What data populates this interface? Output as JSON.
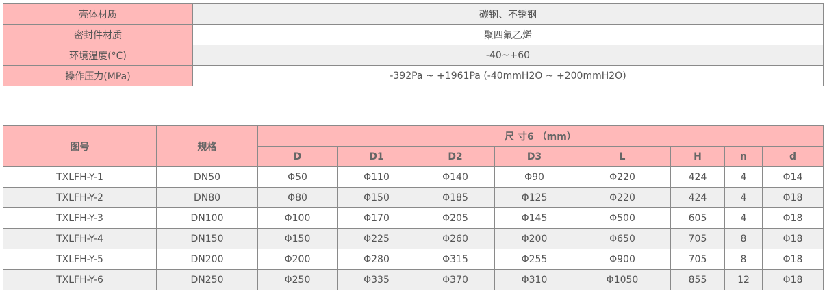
{
  "specs": [
    {
      "label": "壳体材质",
      "value": "碳钢、不锈钢"
    },
    {
      "label": "密封件材质",
      "value": "聚四氟乙烯"
    },
    {
      "label": "环境温度(°C)",
      "value": "-40~+60"
    },
    {
      "label": "操作压力(MPa)",
      "value": "-392Pa ~ +1961Pa  (-40mmH2O ~ +200mmH2O)"
    }
  ],
  "dims": {
    "col_drawing": "图号",
    "col_spec": "规格",
    "group": "尺  寸6 （mm）",
    "cols": [
      "D",
      "D1",
      "D2",
      "D3",
      "L",
      "H",
      "n",
      "d"
    ],
    "rows": [
      [
        "TXLFH-Y-1",
        "DN50",
        "Φ50",
        "Φ110",
        "Φ140",
        "Φ90",
        "Φ220",
        "424",
        "4",
        "Φ14"
      ],
      [
        "TXLFH-Y-2",
        "DN80",
        "Φ80",
        "Φ150",
        "Φ185",
        "Φ125",
        "Φ220",
        "424",
        "4",
        "Φ18"
      ],
      [
        "TXLFH-Y-3",
        "DN100",
        "Φ100",
        "Φ170",
        "Φ205",
        "Φ145",
        "Φ500",
        "605",
        "4",
        "Φ18"
      ],
      [
        "TXLFH-Y-4",
        "DN150",
        "Φ150",
        "Φ225",
        "Φ260",
        "Φ200",
        "Φ650",
        "705",
        "8",
        "Φ18"
      ],
      [
        "TXLFH-Y-5",
        "DN200",
        "Φ200",
        "Φ280",
        "Φ315",
        "Φ255",
        "Φ900",
        "705",
        "8",
        "Φ18"
      ],
      [
        "TXLFH-Y-6",
        "DN250",
        "Φ250",
        "Φ335",
        "Φ370",
        "Φ310",
        "Φ1050",
        "855",
        "12",
        "Φ18"
      ]
    ]
  },
  "colors": {
    "header": "#ffb9b9",
    "alt_row": "#efefef",
    "border": "#8a8a8a"
  }
}
